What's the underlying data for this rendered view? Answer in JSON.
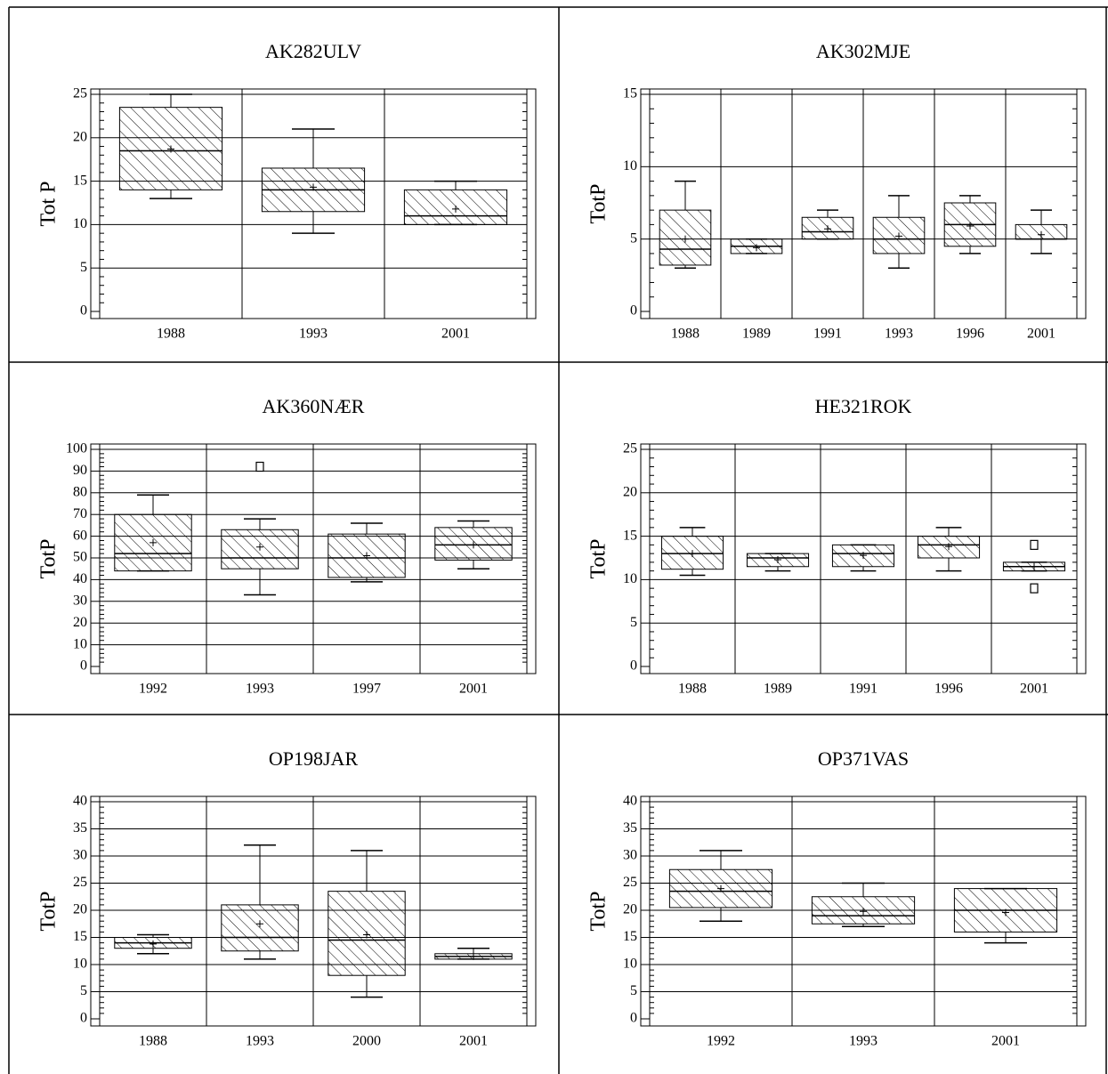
{
  "chart_data": [
    {
      "type": "box",
      "title": "AK282ULV",
      "ylabel": "Tot P",
      "categories": [
        "1988",
        "1993",
        "2001"
      ],
      "ylim": [
        0,
        25
      ],
      "yticks": [
        0,
        5,
        10,
        15,
        20,
        25
      ],
      "grid": true,
      "boxes": [
        {
          "whislo": 13,
          "q1": 14,
          "med": 18.5,
          "q3": 23.5,
          "whishi": 25,
          "mean": 18.7
        },
        {
          "whislo": 9,
          "q1": 11.5,
          "med": 14,
          "q3": 16.5,
          "whishi": 21,
          "mean": 14.3
        },
        {
          "whislo": 10,
          "q1": 10,
          "med": 11,
          "q3": 14,
          "whishi": 15,
          "mean": 11.8
        }
      ]
    },
    {
      "type": "box",
      "title": "AK302MJE",
      "ylabel": "TotP",
      "categories": [
        "1988",
        "1989",
        "1991",
        "1993",
        "1996",
        "2001"
      ],
      "ylim": [
        0,
        15
      ],
      "yticks": [
        0,
        5,
        10,
        15
      ],
      "grid": true,
      "boxes": [
        {
          "whislo": 3,
          "q1": 3.2,
          "med": 4.3,
          "q3": 7,
          "whishi": 9,
          "mean": 5
        },
        {
          "whislo": 4,
          "q1": 4,
          "med": 4.5,
          "q3": 5,
          "whishi": 5,
          "mean": 4.4
        },
        {
          "whislo": 5,
          "q1": 5,
          "med": 5.5,
          "q3": 6.5,
          "whishi": 7,
          "mean": 5.7
        },
        {
          "whislo": 3,
          "q1": 4,
          "med": 5,
          "q3": 6.5,
          "whishi": 8,
          "mean": 5.2
        },
        {
          "whislo": 4,
          "q1": 4.5,
          "med": 6,
          "q3": 7.5,
          "whishi": 8,
          "mean": 5.9
        },
        {
          "whislo": 4,
          "q1": 5,
          "med": 5,
          "q3": 6,
          "whishi": 7,
          "mean": 5.3
        }
      ]
    },
    {
      "type": "box",
      "title": "AK360NÆR",
      "ylabel": "TotP",
      "categories": [
        "1992",
        "1993",
        "1997",
        "2001"
      ],
      "ylim": [
        0,
        100
      ],
      "yticks": [
        0,
        10,
        20,
        30,
        40,
        50,
        60,
        70,
        80,
        90,
        100
      ],
      "grid": true,
      "boxes": [
        {
          "whislo": 44,
          "q1": 44,
          "med": 52,
          "q3": 70,
          "whishi": 79,
          "mean": 57
        },
        {
          "whislo": 33,
          "q1": 45,
          "med": 50,
          "q3": 63,
          "whishi": 68,
          "mean": 55,
          "fliers": [
            92
          ]
        },
        {
          "whislo": 39,
          "q1": 41,
          "med": 50,
          "q3": 61,
          "whishi": 66,
          "mean": 51
        },
        {
          "whislo": 45,
          "q1": 49,
          "med": 56,
          "q3": 64,
          "whishi": 67,
          "mean": 56
        }
      ]
    },
    {
      "type": "box",
      "title": "HE321ROK",
      "ylabel": "TotP",
      "categories": [
        "1988",
        "1989",
        "1991",
        "1996",
        "2001"
      ],
      "ylim": [
        0,
        25
      ],
      "yticks": [
        0,
        5,
        10,
        15,
        20,
        25
      ],
      "grid": true,
      "boxes": [
        {
          "whislo": 10.5,
          "q1": 11.2,
          "med": 13,
          "q3": 15,
          "whishi": 16,
          "mean": 13
        },
        {
          "whislo": 11,
          "q1": 11.5,
          "med": 12.5,
          "q3": 13,
          "whishi": 13,
          "mean": 12.3
        },
        {
          "whislo": 11,
          "q1": 11.5,
          "med": 13,
          "q3": 14,
          "whishi": 14,
          "mean": 12.8
        },
        {
          "whislo": 11,
          "q1": 12.5,
          "med": 14,
          "q3": 15,
          "whishi": 16,
          "mean": 13.8
        },
        {
          "whislo": 11,
          "q1": 11,
          "med": 11.5,
          "q3": 12,
          "whishi": 12,
          "mean": 11.5,
          "fliers": [
            14,
            9
          ]
        }
      ]
    },
    {
      "type": "box",
      "title": "OP198JAR",
      "ylabel": "TotP",
      "categories": [
        "1988",
        "1993",
        "2000",
        "2001"
      ],
      "ylim": [
        0,
        40
      ],
      "yticks": [
        0,
        5,
        10,
        15,
        20,
        25,
        30,
        35,
        40
      ],
      "grid": true,
      "boxes": [
        {
          "whislo": 12,
          "q1": 13,
          "med": 14,
          "q3": 15,
          "whishi": 15.5,
          "mean": 13.8
        },
        {
          "whislo": 11,
          "q1": 12.5,
          "med": 15,
          "q3": 21,
          "whishi": 32,
          "mean": 17.5
        },
        {
          "whislo": 4,
          "q1": 8,
          "med": 14.5,
          "q3": 23.5,
          "whishi": 31,
          "mean": 15.5
        },
        {
          "whislo": 11,
          "q1": 11,
          "med": 11.5,
          "q3": 12,
          "whishi": 13,
          "mean": 11.5
        }
      ]
    },
    {
      "type": "box",
      "title": "OP371VAS",
      "ylabel": "TotP",
      "categories": [
        "1992",
        "1993",
        "2001"
      ],
      "ylim": [
        0,
        40
      ],
      "yticks": [
        0,
        5,
        10,
        15,
        20,
        25,
        30,
        35,
        40
      ],
      "grid": true,
      "boxes": [
        {
          "whislo": 18,
          "q1": 20.5,
          "med": 23.5,
          "q3": 27.5,
          "whishi": 31,
          "mean": 24
        },
        {
          "whislo": 17,
          "q1": 17.5,
          "med": 19,
          "q3": 22.5,
          "whishi": 25,
          "mean": 19.8
        },
        {
          "whislo": 14,
          "q1": 16,
          "med": 20,
          "q3": 24,
          "whishi": 24,
          "mean": 19.6
        }
      ]
    }
  ]
}
